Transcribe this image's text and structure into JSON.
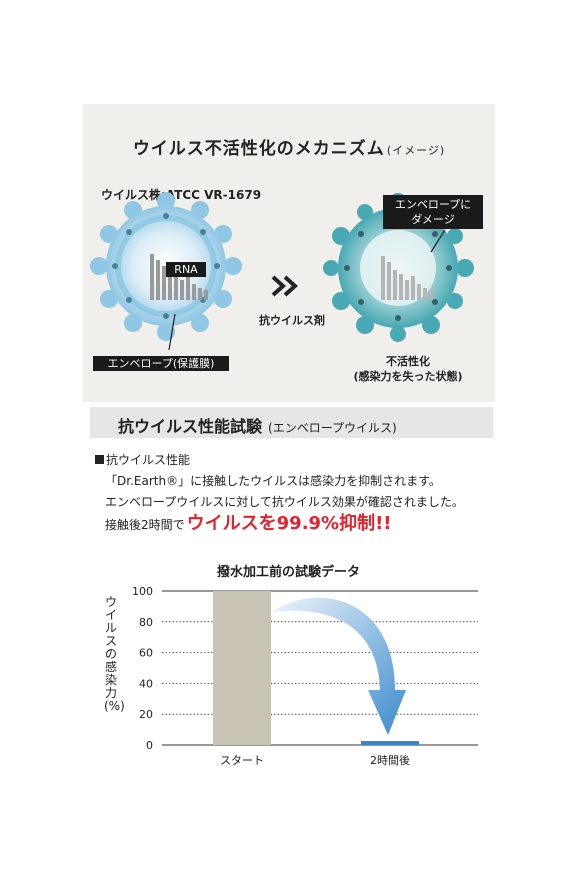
{
  "mechanism": {
    "title": "ウイルス不活性化のメカニズム",
    "title_sub": "(イメージ)",
    "strain": "ウイルス株:ATCC VR-1679",
    "rna_label": "RNA",
    "envelope_label": "エンベロープ(保護膜)",
    "damage_label_line1": "エンベロープに",
    "damage_label_line2": "ダメージ",
    "arrow_symbol": "»",
    "antiviral_agent": "抗ウイルス剤",
    "inactivated_line1": "不活性化",
    "inactivated_line2": "(感染力を失った状態)"
  },
  "test_section": {
    "title": "抗ウイルス性能試験",
    "subtitle": "(エンベロープウイルス)"
  },
  "performance": {
    "heading": "抗ウイルス性能",
    "line1": "「Dr.Earth®」に接触したウイルスは感染力を抑制されます。",
    "line2": "エンベロープウイルスに対して抗ウイルス効果が確認されました。",
    "line3_prefix": "接触後2時間で",
    "line3_highlight": "ウイルスを99.9%抑制!!"
  },
  "chart_data": {
    "type": "bar",
    "title": "撥水加工前の試験データ",
    "ylabel": "ウイルスの感染力(%)",
    "categories": [
      "スタート",
      "2時間後"
    ],
    "values": [
      100,
      0.1
    ],
    "ylim": [
      0,
      100
    ],
    "yticks": [
      0,
      20,
      40,
      60,
      80,
      100
    ],
    "grid": true,
    "bar_colors": [
      "#c9c3b5",
      "#3b87c6"
    ]
  }
}
